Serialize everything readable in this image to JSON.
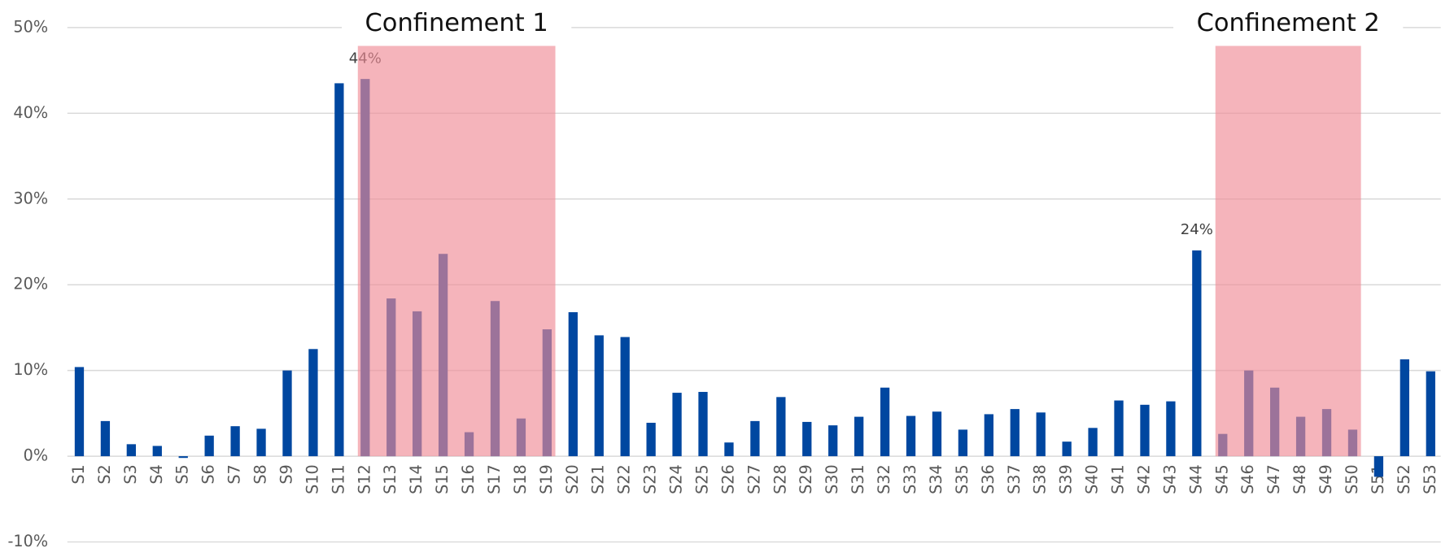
{
  "chart_data": {
    "type": "bar",
    "categories": [
      "S1",
      "S2",
      "S3",
      "S4",
      "S5",
      "S6",
      "S7",
      "S8",
      "S9",
      "S10",
      "S11",
      "S12",
      "S13",
      "S14",
      "S15",
      "S16",
      "S17",
      "S18",
      "S19",
      "S20",
      "S21",
      "S22",
      "S23",
      "S24",
      "S25",
      "S26",
      "S27",
      "S28",
      "S29",
      "S30",
      "S31",
      "S32",
      "S33",
      "S34",
      "S35",
      "S36",
      "S37",
      "S38",
      "S39",
      "S40",
      "S41",
      "S42",
      "S43",
      "S44",
      "S45",
      "S46",
      "S47",
      "S48",
      "S49",
      "S50",
      "S51",
      "S52",
      "S53"
    ],
    "values": [
      10.4,
      4.1,
      1.4,
      1.2,
      -0.2,
      2.4,
      3.5,
      3.2,
      10.0,
      12.5,
      43.5,
      44,
      18.4,
      16.9,
      23.6,
      2.8,
      18.1,
      4.4,
      14.8,
      16.8,
      14.1,
      13.9,
      3.9,
      7.4,
      7.5,
      1.6,
      4.1,
      6.9,
      4.0,
      3.6,
      4.6,
      8.0,
      4.7,
      5.2,
      3.1,
      4.9,
      5.5,
      5.1,
      1.7,
      3.3,
      6.5,
      6.0,
      6.4,
      24,
      2.6,
      10.0,
      8.0,
      4.6,
      5.5,
      3.1,
      -2.4,
      11.3,
      9.9
    ],
    "value_labels": [
      null,
      null,
      null,
      null,
      null,
      null,
      null,
      null,
      null,
      null,
      null,
      "44%",
      null,
      null,
      null,
      null,
      null,
      null,
      null,
      null,
      null,
      null,
      null,
      null,
      null,
      null,
      null,
      null,
      null,
      null,
      null,
      null,
      null,
      null,
      null,
      null,
      null,
      null,
      null,
      null,
      null,
      null,
      null,
      "24%",
      null,
      null,
      null,
      null,
      null,
      null,
      null,
      null,
      null
    ],
    "color": "#0047a0",
    "ylim": [
      -10,
      50
    ],
    "yticks": [
      {
        "value": -10,
        "label": "-10%"
      },
      {
        "value": 0,
        "label": "0%"
      },
      {
        "value": 10,
        "label": "10%"
      },
      {
        "value": 20,
        "label": "20%"
      },
      {
        "value": 30,
        "label": "30%"
      },
      {
        "value": 40,
        "label": "40%"
      },
      {
        "value": 50,
        "label": "50%"
      }
    ],
    "grid": true,
    "periods": [
      {
        "label": "Confinement 1",
        "start": "S12",
        "end": "S19",
        "color": "#f08c96"
      },
      {
        "label": "Confinement 2",
        "start": "S45",
        "end": "S50",
        "color": "#f08c96"
      }
    ]
  }
}
